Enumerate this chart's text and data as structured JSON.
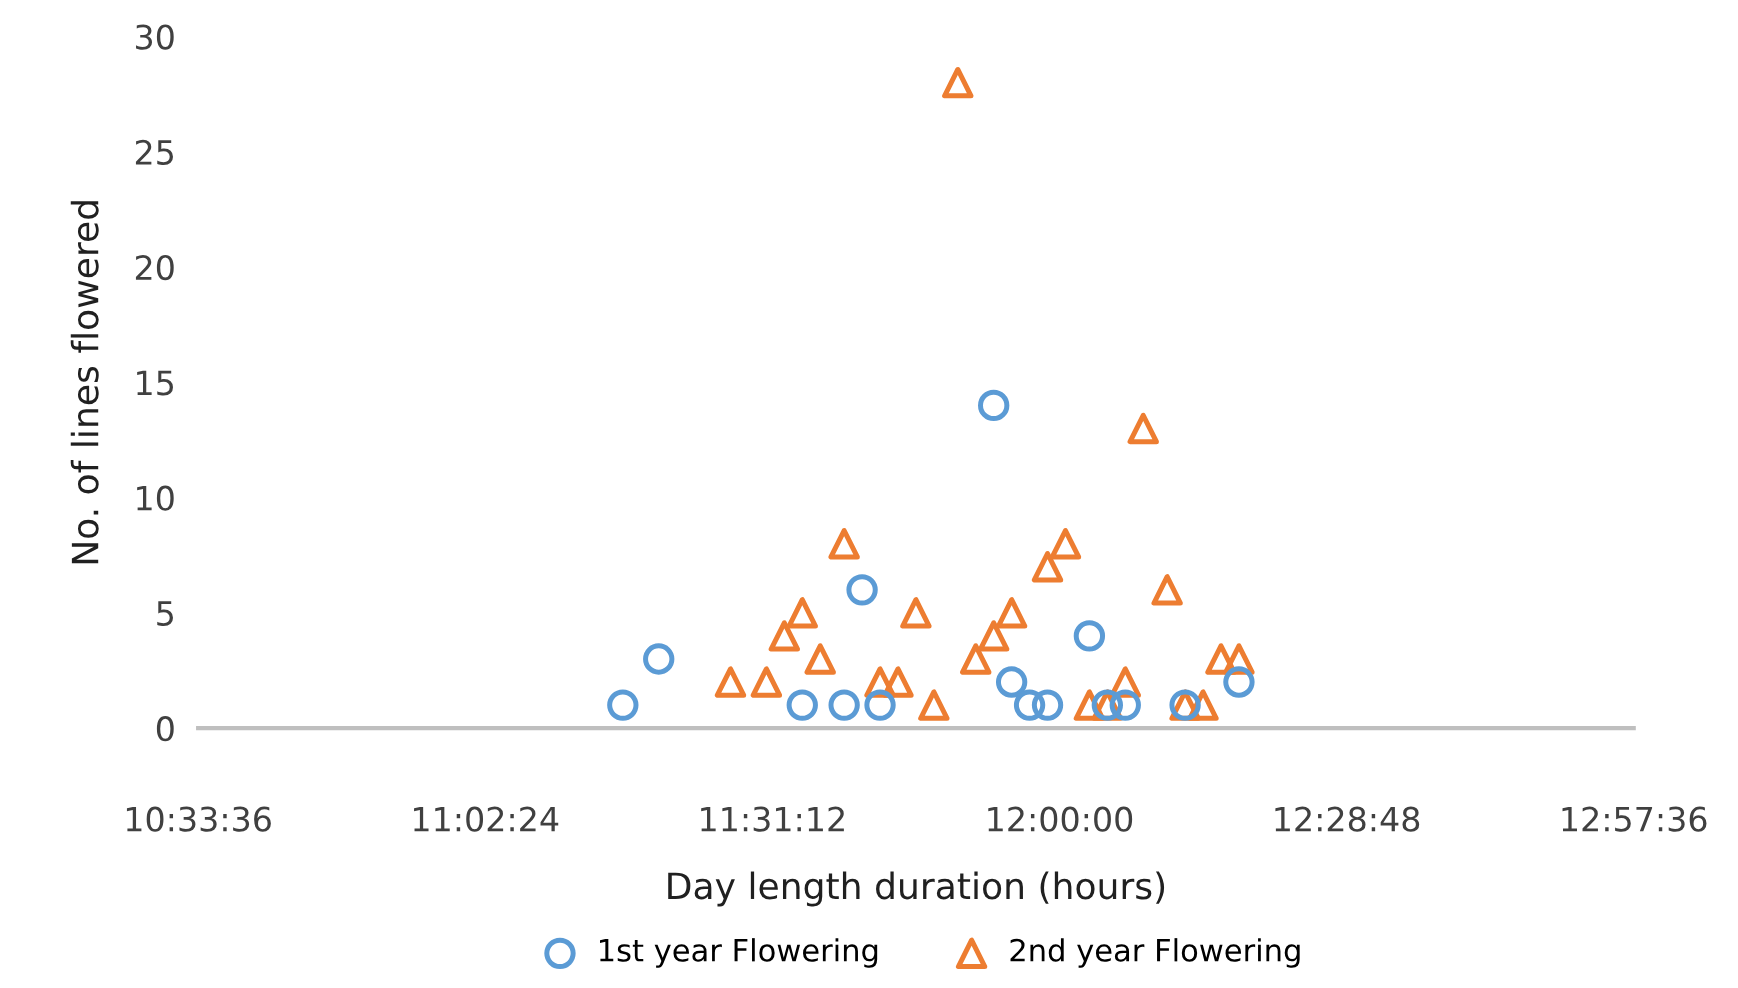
{
  "chart_data": {
    "type": "scatter",
    "xlabel": "Day length duration (hours)",
    "ylabel": "No. of lines flowered",
    "xlim": [
      10.56,
      12.96
    ],
    "xticks": [
      {
        "value": 10.56,
        "label": "10:33:36"
      },
      {
        "value": 11.04,
        "label": "11:02:24"
      },
      {
        "value": 11.52,
        "label": "11:31:12"
      },
      {
        "value": 12.0,
        "label": "12:00:00"
      },
      {
        "value": 12.48,
        "label": "12:28:48"
      },
      {
        "value": 12.96,
        "label": "12:57:36"
      }
    ],
    "ylim": [
      0,
      30
    ],
    "yticks": [
      0,
      5,
      10,
      15,
      20,
      25,
      30
    ],
    "grid": false,
    "legend": "bottom",
    "series": [
      {
        "name": "1st year Flowering",
        "color": "#5b9bd5",
        "marker": "circle",
        "x": [
          11.27,
          11.33,
          11.57,
          11.64,
          11.67,
          11.7,
          11.89,
          11.92,
          11.95,
          11.98,
          12.05,
          12.08,
          12.11,
          12.21,
          12.3
        ],
        "values": [
          1,
          3,
          1,
          1,
          6,
          1,
          14,
          2,
          1,
          1,
          4,
          1,
          1,
          1,
          2
        ]
      },
      {
        "name": "2nd year Flowering",
        "color": "#ed7d31",
        "marker": "triangle",
        "x": [
          11.45,
          11.51,
          11.54,
          11.57,
          11.6,
          11.64,
          11.7,
          11.73,
          11.76,
          11.79,
          11.83,
          11.86,
          11.89,
          11.92,
          11.98,
          12.01,
          12.05,
          12.08,
          12.11,
          12.14,
          12.18,
          12.21,
          12.24,
          12.27,
          12.3
        ],
        "values": [
          2,
          2,
          4,
          5,
          3,
          8,
          2,
          2,
          5,
          1,
          28,
          3,
          4,
          5,
          7,
          8,
          1,
          1,
          2,
          13,
          6,
          1,
          1,
          3,
          3
        ]
      }
    ]
  }
}
